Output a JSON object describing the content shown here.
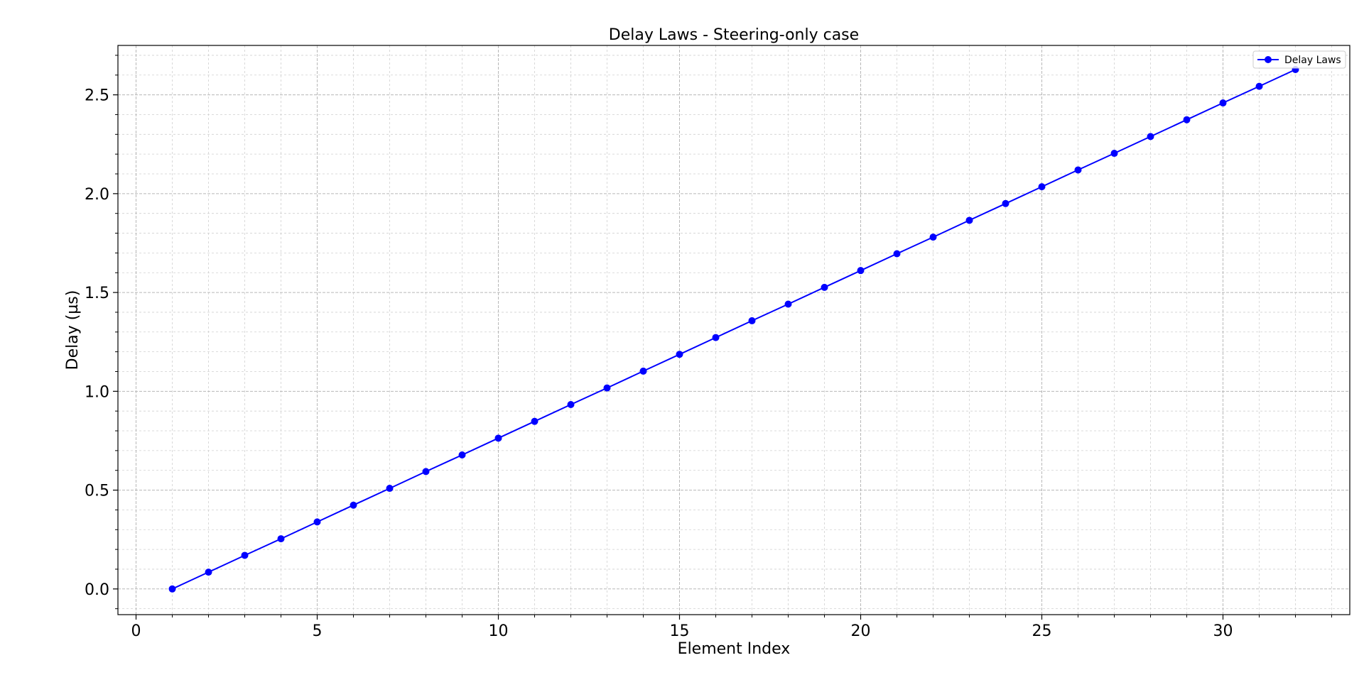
{
  "chart_data": {
    "type": "line",
    "title": "Delay Laws - Steering-only case",
    "xlabel": "Element Index",
    "ylabel": "Delay (µs)",
    "xlim": [
      -0.5,
      33.5
    ],
    "ylim": [
      -0.13,
      2.75
    ],
    "xticks": [
      0,
      5,
      10,
      15,
      20,
      25,
      30
    ],
    "xtick_labels": [
      "0",
      "5",
      "10",
      "15",
      "20",
      "25",
      "30"
    ],
    "yticks": [
      0.0,
      0.5,
      1.0,
      1.5,
      2.0,
      2.5
    ],
    "ytick_labels": [
      "0.0",
      "0.5",
      "1.0",
      "1.5",
      "2.0",
      "2.5"
    ],
    "minor_x_step": 1,
    "minor_y_step": 0.1,
    "grid": true,
    "legend_position": "top-right",
    "series": [
      {
        "name": "Delay Laws",
        "color": "#0000ff",
        "marker": "circle",
        "x": [
          1,
          2,
          3,
          4,
          5,
          6,
          7,
          8,
          9,
          10,
          11,
          12,
          13,
          14,
          15,
          16,
          17,
          18,
          19,
          20,
          21,
          22,
          23,
          24,
          25,
          26,
          27,
          28,
          29,
          30,
          31,
          32
        ],
        "y": [
          0.0,
          0.085,
          0.17,
          0.254,
          0.339,
          0.424,
          0.509,
          0.594,
          0.678,
          0.763,
          0.848,
          0.933,
          1.017,
          1.102,
          1.187,
          1.272,
          1.357,
          1.441,
          1.526,
          1.611,
          1.696,
          1.78,
          1.865,
          1.95,
          2.035,
          2.12,
          2.204,
          2.289,
          2.374,
          2.459,
          2.543,
          2.628
        ]
      }
    ]
  }
}
